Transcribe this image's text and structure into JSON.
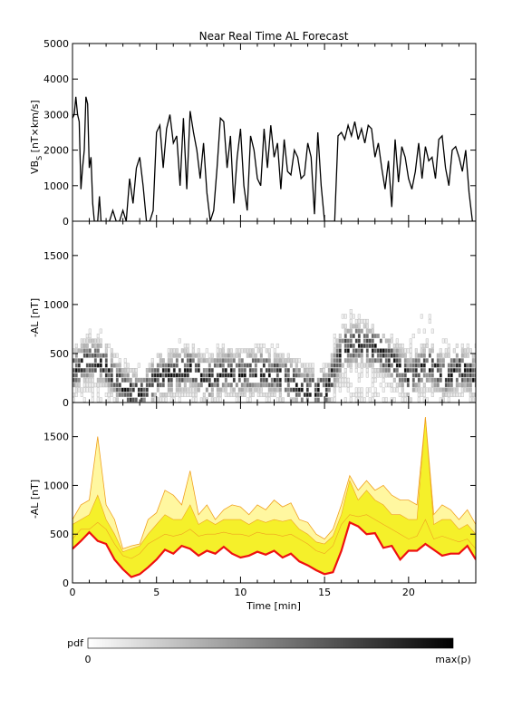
{
  "chart_data": {
    "title": "Near Real Time AL Forecast",
    "x_axis": {
      "label": "Time [min]",
      "range": [
        0,
        24
      ],
      "ticks": [
        0,
        5,
        10,
        15,
        20
      ],
      "tick_labels": [
        "0",
        "5",
        "10",
        "15",
        "20"
      ]
    },
    "panels": [
      {
        "id": "vbs",
        "type": "line",
        "ylabel_main": "VB",
        "ylabel_sub": "S",
        "ylabel_unit": " [nT×km/s]",
        "ylim": [
          0,
          5000
        ],
        "yticks": [
          0,
          1000,
          2000,
          3000,
          4000,
          5000
        ],
        "ytick_labels": [
          "0",
          "1000",
          "2000",
          "3000",
          "4000",
          "5000"
        ],
        "series": [
          {
            "color": "#000000",
            "x": [
              0.0,
              0.1,
              0.2,
              0.3,
              0.4,
              0.5,
              0.6,
              0.7,
              0.8,
              0.9,
              1.0,
              1.1,
              1.2,
              1.3,
              1.4,
              1.5,
              1.6,
              1.7,
              1.8,
              1.9,
              2.0,
              2.2,
              2.4,
              2.6,
              2.8,
              3.0,
              3.2,
              3.4,
              3.6,
              3.8,
              4.0,
              4.2,
              4.4,
              4.6,
              4.8,
              5.0,
              5.2,
              5.4,
              5.6,
              5.8,
              6.0,
              6.2,
              6.4,
              6.6,
              6.8,
              7.0,
              7.2,
              7.4,
              7.6,
              7.8,
              8.0,
              8.2,
              8.4,
              8.6,
              8.8,
              9.0,
              9.2,
              9.4,
              9.6,
              9.8,
              10.0,
              10.2,
              10.4,
              10.6,
              10.8,
              11.0,
              11.2,
              11.4,
              11.6,
              11.8,
              12.0,
              12.2,
              12.4,
              12.6,
              12.8,
              13.0,
              13.2,
              13.4,
              13.6,
              13.8,
              14.0,
              14.2,
              14.4,
              14.6,
              14.8,
              15.0,
              15.2,
              15.4,
              15.6,
              15.8,
              16.0,
              16.2,
              16.4,
              16.6,
              16.8,
              17.0,
              17.2,
              17.4,
              17.6,
              17.8,
              18.0,
              18.2,
              18.4,
              18.6,
              18.8,
              19.0,
              19.2,
              19.4,
              19.6,
              19.8,
              20.0,
              20.2,
              20.4,
              20.6,
              20.8,
              21.0,
              21.2,
              21.4,
              21.6,
              21.8,
              22.0,
              22.2,
              22.4,
              22.6,
              22.8,
              23.0,
              23.2,
              23.4,
              23.6,
              23.8,
              24.0
            ],
            "y": [
              2900,
              3000,
              3500,
              3000,
              2800,
              900,
              1500,
              2000,
              3500,
              3300,
              1500,
              1800,
              500,
              0,
              0,
              0,
              700,
              0,
              0,
              0,
              0,
              0,
              300,
              0,
              0,
              300,
              0,
              1200,
              500,
              1500,
              1800,
              1000,
              0,
              0,
              300,
              2500,
              2700,
              1500,
              2600,
              3000,
              2200,
              2400,
              1000,
              2900,
              900,
              3100,
              2500,
              2000,
              1200,
              2200,
              800,
              0,
              300,
              1500,
              2900,
              2800,
              1500,
              2400,
              500,
              1800,
              2600,
              1000,
              300,
              2400,
              2000,
              1200,
              1000,
              2600,
              1500,
              2700,
              1800,
              2200,
              900,
              2300,
              1400,
              1300,
              2000,
              1800,
              1200,
              1300,
              2200,
              1800,
              200,
              2500,
              1000,
              0,
              0,
              0,
              0,
              2400,
              2500,
              2300,
              2700,
              2400,
              2800,
              2300,
              2600,
              2200,
              2700,
              2600,
              1800,
              2200,
              1500,
              900,
              1700,
              400,
              2300,
              1100,
              2100,
              1800,
              1200,
              900,
              1400,
              2200,
              1200,
              2100,
              1700,
              1800,
              1200,
              2300,
              2400,
              1500,
              1000,
              2000,
              2100,
              1800,
              1400,
              2000,
              800,
              0,
              0
            ]
          }
        ]
      },
      {
        "id": "al-pdf",
        "type": "heatmap",
        "ylabel": "-AL [nT]",
        "ylim": [
          0,
          1850
        ],
        "yticks": [
          0,
          500,
          1000,
          1500
        ],
        "ytick_labels": [
          "0",
          "500",
          "1000",
          "1500"
        ],
        "bin_height_nT": 50,
        "mode_ridge_x": [
          0,
          1,
          2,
          3,
          4,
          5,
          6,
          7,
          8,
          9,
          10,
          11,
          12,
          13,
          14,
          15,
          16,
          17,
          18,
          19,
          20,
          21,
          22,
          23,
          24
        ],
        "mode_ridge_al": [
          300,
          420,
          330,
          110,
          40,
          240,
          280,
          320,
          200,
          300,
          260,
          300,
          260,
          190,
          100,
          90,
          520,
          580,
          520,
          380,
          220,
          360,
          240,
          320,
          220
        ],
        "spread_al": [
          650,
          750,
          700,
          430,
          350,
          520,
          600,
          650,
          550,
          620,
          560,
          600,
          580,
          480,
          380,
          400,
          900,
          900,
          820,
          680,
          650,
          1000,
          600,
          650,
          550
        ],
        "notes": "density of forecast AL values; darker = higher probability"
      },
      {
        "id": "al-band",
        "type": "area",
        "ylabel": "-AL [nT]",
        "ylim": [
          0,
          1850
        ],
        "yticks": [
          0,
          500,
          1000,
          1500
        ],
        "ytick_labels": [
          "0",
          "500",
          "1000",
          "1500"
        ],
        "x": [
          0,
          0.5,
          1.0,
          1.5,
          2.0,
          2.5,
          3.0,
          3.5,
          4.0,
          4.5,
          5.0,
          5.5,
          6.0,
          6.5,
          7.0,
          7.5,
          8.0,
          8.5,
          9.0,
          9.5,
          10.0,
          10.5,
          11.0,
          11.5,
          12.0,
          12.5,
          13.0,
          13.5,
          14.0,
          14.5,
          15.0,
          15.5,
          16.0,
          16.5,
          17.0,
          17.5,
          18.0,
          18.5,
          19.0,
          19.5,
          20.0,
          20.5,
          21.0,
          21.5,
          22.0,
          22.5,
          23.0,
          23.5,
          24.0
        ],
        "upper_outer": [
          650,
          800,
          850,
          1500,
          800,
          650,
          350,
          380,
          400,
          650,
          720,
          950,
          900,
          800,
          1150,
          700,
          800,
          650,
          750,
          800,
          780,
          700,
          800,
          750,
          850,
          780,
          820,
          650,
          620,
          500,
          450,
          550,
          800,
          1100,
          950,
          1050,
          950,
          1000,
          900,
          850,
          850,
          800,
          1700,
          700,
          800,
          750,
          650,
          750,
          600
        ],
        "upper_inner": [
          600,
          650,
          700,
          900,
          650,
          500,
          320,
          350,
          380,
          500,
          600,
          700,
          650,
          650,
          800,
          600,
          650,
          600,
          650,
          650,
          650,
          600,
          650,
          620,
          650,
          630,
          650,
          550,
          500,
          420,
          400,
          480,
          700,
          1050,
          850,
          950,
          850,
          800,
          700,
          700,
          650,
          650,
          1700,
          600,
          650,
          650,
          550,
          600,
          500
        ],
        "median": [
          450,
          550,
          550,
          620,
          550,
          400,
          280,
          250,
          300,
          400,
          450,
          500,
          480,
          500,
          550,
          480,
          500,
          500,
          520,
          500,
          500,
          480,
          520,
          500,
          500,
          480,
          500,
          450,
          400,
          330,
          300,
          380,
          600,
          700,
          680,
          700,
          650,
          600,
          550,
          500,
          450,
          480,
          650,
          450,
          480,
          450,
          420,
          450,
          350
        ],
        "lower": [
          350,
          430,
          520,
          430,
          400,
          240,
          140,
          60,
          90,
          160,
          240,
          340,
          300,
          380,
          350,
          280,
          330,
          300,
          370,
          300,
          260,
          280,
          320,
          290,
          330,
          260,
          300,
          220,
          180,
          130,
          90,
          110,
          330,
          620,
          580,
          500,
          510,
          360,
          380,
          240,
          330,
          330,
          400,
          340,
          280,
          300,
          300,
          380,
          240
        ],
        "colors": {
          "outer_fill": "#fff7a0",
          "inner_fill": "#f5f02a",
          "edge": "#f0a020",
          "lower_line": "#ee1010"
        }
      }
    ]
  },
  "colorbar": {
    "label": "pdf",
    "min_label": "0",
    "max_label": "max(p)"
  }
}
